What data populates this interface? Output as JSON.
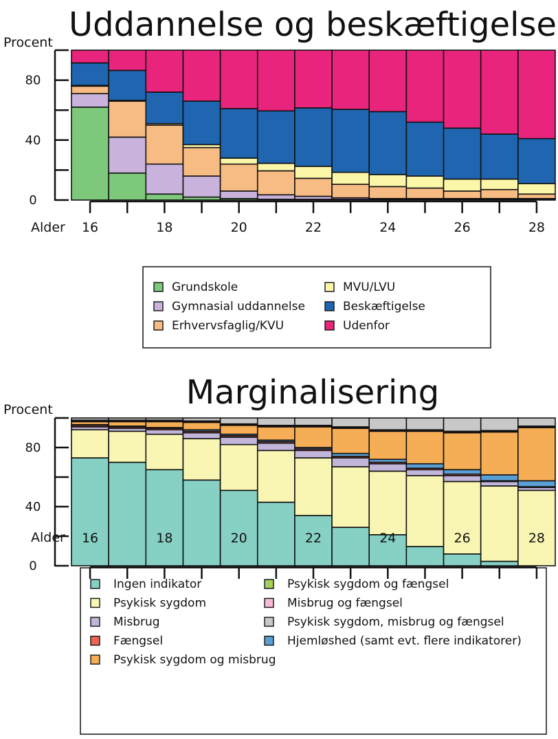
{
  "chart_data": [
    {
      "type": "bar",
      "stacked": true,
      "title": "Uddannelse og beskæftigelse",
      "ylabel": "Procent",
      "xlabel": "Alder",
      "ylim": [
        0,
        100
      ],
      "yticks": [
        0,
        40,
        80
      ],
      "xticks": [
        16,
        18,
        20,
        22,
        24,
        26,
        28
      ],
      "categories": [
        16,
        17,
        18,
        19,
        20,
        21,
        22,
        23,
        24,
        25,
        26,
        27,
        28
      ],
      "series": [
        {
          "name": "Grundskole",
          "color": "#7ec87b",
          "values": [
            62,
            18,
            4,
            2,
            1,
            0.5,
            0.5,
            0.5,
            0.5,
            0.5,
            0.5,
            0.5,
            0.5
          ]
        },
        {
          "name": "Gymnasial uddannelse",
          "color": "#c9b3dc",
          "values": [
            9,
            24,
            20,
            14,
            5,
            3,
            2,
            1,
            0.5,
            0.5,
            0.5,
            0.5,
            0.5
          ]
        },
        {
          "name": "Erhvervsfaglig/KVU",
          "color": "#f7bb84",
          "values": [
            5,
            24,
            26,
            19,
            18,
            16,
            12,
            9,
            8,
            7,
            5,
            6,
            3
          ]
        },
        {
          "name": "MVU/LVU",
          "color": "#fbf6a8",
          "values": [
            0.5,
            0.5,
            1,
            2,
            4,
            5,
            8,
            8,
            8,
            8,
            8,
            7,
            7
          ]
        },
        {
          "name": "Beskæftigelse",
          "color": "#1f65b0",
          "values": [
            15,
            20,
            21,
            29,
            33,
            35,
            39,
            42,
            42,
            36,
            34,
            30,
            30
          ]
        },
        {
          "name": "Udenfor",
          "color": "#e8247c",
          "values": [
            8.5,
            13.5,
            28,
            34,
            39,
            40.5,
            38.5,
            39.5,
            41,
            48,
            52,
            56,
            59
          ]
        }
      ],
      "legend": {
        "position": "bottom",
        "columns": 2
      }
    },
    {
      "type": "bar",
      "stacked": true,
      "title": "Marginalisering",
      "ylabel": "Procent",
      "xlabel": "Alder",
      "ylim": [
        0,
        100
      ],
      "yticks": [
        0,
        40,
        80
      ],
      "xticks": [
        16,
        18,
        20,
        22,
        24,
        26,
        28
      ],
      "categories": [
        16,
        17,
        18,
        19,
        20,
        21,
        22,
        23,
        24,
        25,
        26,
        27,
        28
      ],
      "series": [
        {
          "name": "Ingen indikator",
          "color": "#86d1c4",
          "values": [
            73,
            70,
            65,
            58,
            51,
            43,
            34,
            26,
            21,
            13,
            8,
            3,
            0
          ]
        },
        {
          "name": "Psykisk sygdom",
          "color": "#f8f6b2",
          "values": [
            19,
            21,
            24,
            28,
            31,
            35,
            39,
            41,
            43,
            48,
            49,
            51,
            51
          ]
        },
        {
          "name": "Misbrug",
          "color": "#c1b6d9",
          "values": [
            2,
            2,
            3,
            4,
            5,
            5,
            5,
            6,
            5,
            4,
            4,
            3,
            2
          ]
        },
        {
          "name": "Fængsel",
          "color": "#ef6551",
          "values": [
            1,
            1,
            1,
            1,
            1,
            1,
            1,
            1,
            1,
            1,
            1,
            0.5,
            0.5
          ]
        },
        {
          "name": "Hjemløshed (samt evt. flere indikatorer)",
          "color": "#5a9fd4",
          "values": [
            0.5,
            0.5,
            0.5,
            1,
            1,
            1,
            1,
            2,
            2,
            3,
            3,
            4,
            4
          ]
        },
        {
          "name": "Psykisk sygdom og misbrug",
          "color": "#f5ad56",
          "values": [
            2,
            3,
            4,
            5,
            6,
            9,
            14,
            17,
            19,
            22,
            25,
            29,
            36
          ]
        },
        {
          "name": "Psykisk sygdom og fængsel",
          "color": "#a4d25c",
          "values": [
            0.5,
            0.5,
            0.5,
            0.5,
            0.5,
            0.5,
            0.5,
            0.5,
            0.5,
            0.5,
            0.5,
            0.5,
            0.5
          ]
        },
        {
          "name": "Misbrug og fængsel",
          "color": "#f6bcd7",
          "values": [
            0.5,
            0.5,
            0.5,
            0.5,
            0.5,
            0.5,
            0.5,
            0.5,
            0.5,
            0.5,
            0.5,
            0.5,
            0.5
          ]
        },
        {
          "name": "Psykisk sygdom, misbrug og fængsel",
          "color": "#c8c8c8",
          "values": [
            1.5,
            1.5,
            1.5,
            2,
            4,
            5,
            5,
            6,
            8,
            8,
            9,
            8.5,
            5.5
          ]
        }
      ],
      "legend": {
        "position": "bottom",
        "columns": 2,
        "order": [
          "Ingen indikator",
          "Psykisk sygdom",
          "Misbrug",
          "Fængsel",
          "Psykisk sygdom og misbrug",
          "Psykisk sygdom og fængsel",
          "Misbrug og fængsel",
          "Psykisk sygdom, misbrug og fængsel",
          "Hjemløshed (samt evt. flere indikatorer)"
        ]
      }
    }
  ]
}
